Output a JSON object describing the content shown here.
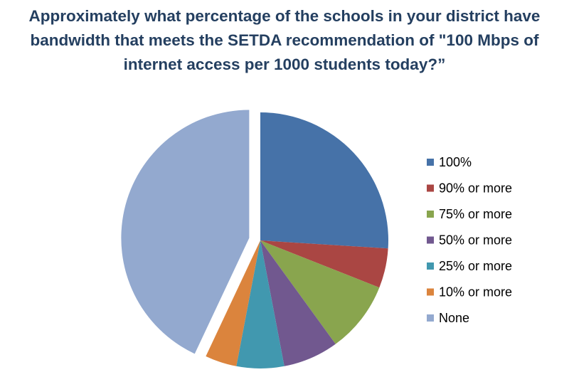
{
  "chart_data": {
    "type": "pie",
    "title": "Approximately what percentage of the schools in your district have bandwidth that meets the SETDA recommendation of \"100 Mbps of internet access per 1000 students today?”",
    "categories": [
      "100%",
      "90% or more",
      "75% or more",
      "50% or more",
      "25% or more",
      "10% or more",
      "None"
    ],
    "values": [
      26,
      5,
      9,
      7,
      6,
      4,
      43
    ],
    "colors": [
      "#4672a8",
      "#aa4643",
      "#89a54e",
      "#71588f",
      "#4198af",
      "#db843d",
      "#93a9cf"
    ],
    "exploded": [
      false,
      false,
      false,
      false,
      false,
      false,
      true
    ],
    "legend": "right"
  }
}
